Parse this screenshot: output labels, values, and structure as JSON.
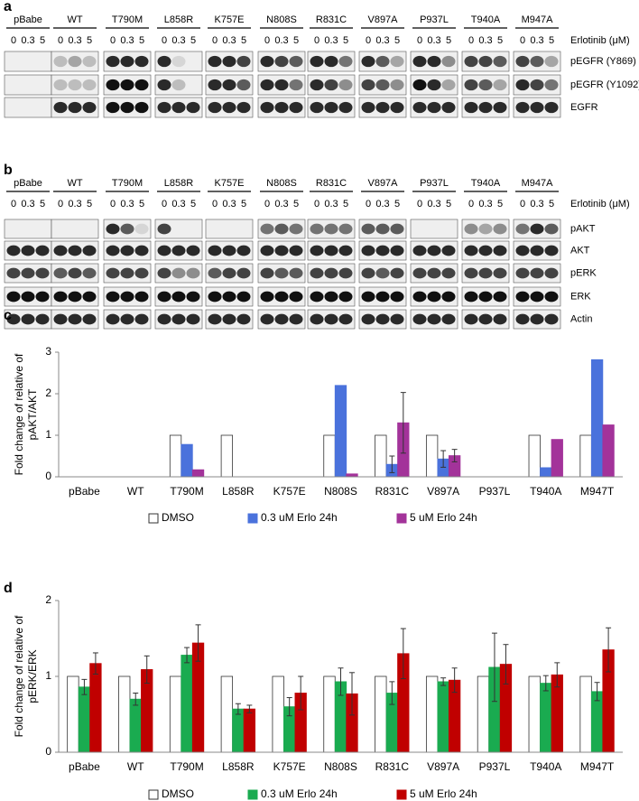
{
  "panel_a": {
    "panel_label": "a",
    "lanes": [
      "pBabe",
      "WT",
      "T790M",
      "L858R",
      "K757E",
      "N808S",
      "R831C",
      "V897A",
      "P937L",
      "T940A",
      "M947A"
    ],
    "doses": [
      "0",
      "0.3",
      "5"
    ],
    "dose_label": "Erlotinib (μM)",
    "rows": [
      "pEGFR (Y869)",
      "pEGFR (Y1092)",
      "EGFR"
    ]
  },
  "panel_b": {
    "panel_label": "b",
    "lanes": [
      "pBabe",
      "WT",
      "T790M",
      "L858R",
      "K757E",
      "N808S",
      "R831C",
      "V897A",
      "P937L",
      "T940A",
      "M947A"
    ],
    "doses": [
      "0",
      "0.3",
      "5"
    ],
    "dose_label": "Erlotinib (μM)",
    "rows": [
      "pAKT",
      "AKT",
      "pERK",
      "ERK",
      "Actin"
    ]
  },
  "chart_data": [
    {
      "type": "bar",
      "panel_label": "c",
      "y_label": [
        "Fold change of relative of",
        "pAKT/AKT"
      ],
      "categories": [
        "pBabe",
        "WT",
        "T790M",
        "L858R",
        "K757E",
        "N808S",
        "R831C",
        "V897A",
        "P937L",
        "T940A",
        "M947T"
      ],
      "series": [
        {
          "name": "DMSO",
          "color": "#ffffff",
          "values": [
            0,
            0,
            1,
            1,
            0,
            1,
            1,
            1,
            0,
            1,
            1
          ],
          "errors": [
            null,
            null,
            null,
            null,
            null,
            null,
            null,
            null,
            null,
            null,
            null
          ]
        },
        {
          "name": "0.3 uM Erlo 24h",
          "color": "#4a72dc",
          "values": [
            0,
            0,
            0.78,
            0,
            0,
            2.2,
            0.3,
            0.43,
            0,
            0.22,
            2.82
          ],
          "errors": [
            null,
            null,
            null,
            null,
            null,
            null,
            0.2,
            0.2,
            null,
            null,
            null
          ]
        },
        {
          "name": "5 uM Erlo 24h",
          "color": "#a3339a",
          "values": [
            0,
            0,
            0.17,
            0,
            0,
            0.07,
            1.3,
            0.51,
            0,
            0.9,
            1.25
          ],
          "errors": [
            null,
            null,
            null,
            null,
            null,
            null,
            0.73,
            0.15,
            null,
            null,
            null
          ]
        }
      ],
      "ylim": [
        0,
        3
      ],
      "yticks": [
        0,
        1,
        2,
        3
      ],
      "legend": "bottom"
    },
    {
      "type": "bar",
      "panel_label": "d",
      "y_label": [
        "Fold change of relative of",
        "pERK/ERK"
      ],
      "categories": [
        "pBabe",
        "WT",
        "T790M",
        "L858R",
        "K757E",
        "N808S",
        "R831C",
        "V897A",
        "P937L",
        "T940A",
        "M947T"
      ],
      "series": [
        {
          "name": "DMSO",
          "color": "#ffffff",
          "values": [
            1,
            1,
            1,
            1,
            1,
            1,
            1,
            1,
            1,
            1,
            1
          ],
          "errors": [
            null,
            null,
            null,
            null,
            null,
            null,
            null,
            null,
            null,
            null,
            null
          ]
        },
        {
          "name": "0.3 uM Erlo 24h",
          "color": "#1aab50",
          "values": [
            0.86,
            0.7,
            1.28,
            0.57,
            0.6,
            0.93,
            0.78,
            0.93,
            1.12,
            0.91,
            0.8
          ],
          "errors": [
            0.1,
            0.08,
            0.1,
            0.07,
            0.12,
            0.18,
            0.15,
            0.05,
            0.45,
            0.1,
            0.12
          ]
        },
        {
          "name": "5 uM Erlo 24h",
          "color": "#c00000",
          "values": [
            1.17,
            1.09,
            1.44,
            0.57,
            0.78,
            0.77,
            1.3,
            0.95,
            1.16,
            1.02,
            1.35
          ],
          "errors": [
            0.14,
            0.18,
            0.24,
            0.05,
            0.22,
            0.28,
            0.33,
            0.16,
            0.26,
            0.16,
            0.29
          ]
        }
      ],
      "ylim": [
        0,
        2
      ],
      "yticks": [
        0,
        1,
        2
      ],
      "legend": "bottom"
    }
  ]
}
